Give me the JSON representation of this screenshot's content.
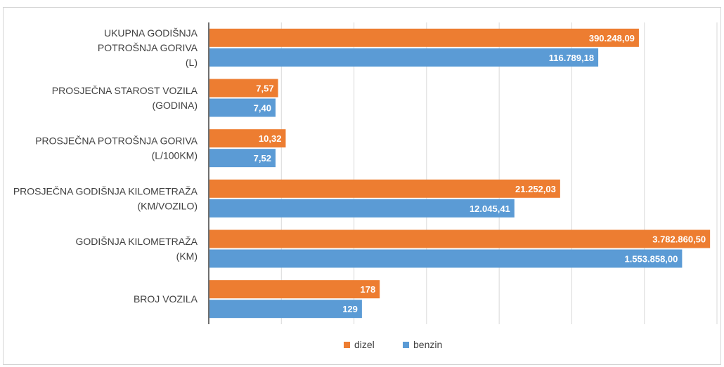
{
  "chart_data": {
    "type": "bar",
    "orientation": "horizontal",
    "categories": [
      [
        "UKUPNA GODIŠNJA",
        "POTROŠNJA GORIVA",
        "(L)"
      ],
      [
        "PROSJEČNA STAROST VOZILA",
        "(GODINA)"
      ],
      [
        "PROSJEČNA POTROŠNJA GORIVA",
        "(L/100KM)"
      ],
      [
        "PROSJEČNA GODIŠNJA KILOMETRAŽA",
        "(KM/VOZILO)"
      ],
      [
        "GODIŠNJA KILOMETRAŽA",
        "(KM)"
      ],
      [
        "BROJ VOZILA"
      ]
    ],
    "series": [
      {
        "name": "dizel",
        "color": "#ED7D31",
        "labels": [
          "390.248,09",
          "7,57",
          "10,32",
          "21.252,03",
          "3.782.860,50",
          "178"
        ],
        "display_level": [
          0.845,
          0.135,
          0.15,
          0.69,
          0.985,
          0.335
        ]
      },
      {
        "name": "benzin",
        "color": "#5B9BD5",
        "labels": [
          "116.789,18",
          "7,40",
          "7,52",
          "12.045,41",
          "1.553.858,00",
          "129"
        ],
        "display_level": [
          0.765,
          0.13,
          0.13,
          0.6,
          0.93,
          0.3
        ]
      }
    ],
    "legend_position": "bottom",
    "grid": true
  }
}
